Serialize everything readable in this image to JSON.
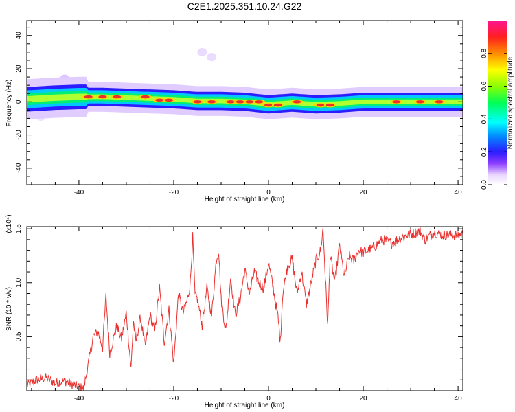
{
  "chart_data": [
    {
      "type": "heatmap",
      "title": "C2E1.2025.351.10.24.G22",
      "xlabel": "Height of straight line (km)",
      "ylabel": "Frequency (Hz)",
      "xlim": [
        -51,
        41
      ],
      "ylim": [
        -50,
        49
      ],
      "xticks": [
        "-40",
        "-20",
        "0",
        "20",
        "40"
      ],
      "yticks": [
        "-40",
        "-20",
        "0",
        "20",
        "40"
      ],
      "colorbar": {
        "label": "Normalized spectral amplitude",
        "range": [
          0,
          1
        ],
        "ticks": [
          "0.0",
          "0.2",
          "0.4",
          "0.6",
          "0.8"
        ]
      },
      "ridge": {
        "x": [
          -51,
          -45,
          -40,
          -35,
          -30,
          -25,
          -20,
          -15,
          -10,
          -5,
          0,
          5,
          10,
          15,
          20,
          25,
          30,
          35,
          40
        ],
        "frequency": [
          1.5,
          2.5,
          3,
          3,
          2.5,
          2,
          1.5,
          0.5,
          0.5,
          0,
          -1.5,
          -0.5,
          -1.5,
          -1,
          0,
          0,
          0,
          0,
          0
        ]
      },
      "peaks": [
        {
          "x": -38,
          "y": 3
        },
        {
          "x": -35,
          "y": 3
        },
        {
          "x": -32,
          "y": 3
        },
        {
          "x": -26,
          "y": 3
        },
        {
          "x": -23,
          "y": 1
        },
        {
          "x": -21,
          "y": 1
        },
        {
          "x": -15,
          "y": 0
        },
        {
          "x": -12,
          "y": 0
        },
        {
          "x": -8,
          "y": 0
        },
        {
          "x": -6,
          "y": 0
        },
        {
          "x": -4,
          "y": 0
        },
        {
          "x": -2,
          "y": 0
        },
        {
          "x": 0,
          "y": -2
        },
        {
          "x": 2,
          "y": -2
        },
        {
          "x": 6,
          "y": 0
        },
        {
          "x": 11,
          "y": -2
        },
        {
          "x": 13,
          "y": -2
        },
        {
          "x": 27,
          "y": 0
        },
        {
          "x": 32,
          "y": 0
        },
        {
          "x": 36,
          "y": 0
        }
      ]
    },
    {
      "type": "line",
      "xlabel": "Height of straight line (km)",
      "ylabel": "SNR (10 * v/v)",
      "multiplier": "(x10⁴)",
      "xlim": [
        -51,
        41
      ],
      "ylim": [
        0,
        1.52
      ],
      "xticks": [
        "-40",
        "-20",
        "0",
        "20",
        "40"
      ],
      "yticks": [
        "0.5",
        "1.0",
        "1.5"
      ],
      "series": [
        {
          "name": "SNR",
          "color": "#e8312e",
          "x": [
            -51,
            -49,
            -47,
            -45,
            -43,
            -41,
            -39,
            -38,
            -37,
            -36,
            -35,
            -34.3,
            -33.5,
            -32,
            -31,
            -30,
            -29,
            -28.5,
            -28,
            -27,
            -26,
            -25,
            -24,
            -23,
            -22,
            -21,
            -20,
            -19,
            -18,
            -17,
            -16.5,
            -16,
            -15.5,
            -15,
            -14,
            -13,
            -12,
            -11,
            -10.5,
            -10,
            -9,
            -8,
            -7,
            -6,
            -5,
            -4,
            -3,
            -2,
            -1,
            0,
            1,
            2,
            2.5,
            3,
            4,
            5,
            6,
            7,
            8,
            9,
            10,
            11,
            11.5,
            12,
            12.5,
            13,
            14,
            15,
            16,
            17,
            18,
            19,
            20,
            22,
            24,
            26,
            28,
            30,
            32,
            33,
            35,
            37,
            39,
            41
          ],
          "y": [
            0.05,
            0.1,
            0.12,
            0.07,
            0.09,
            0.05,
            0.02,
            0.25,
            0.5,
            0.55,
            0.4,
            0.88,
            0.35,
            0.6,
            0.48,
            0.72,
            0.2,
            0.65,
            0.45,
            0.68,
            0.4,
            0.7,
            0.55,
            0.95,
            0.45,
            0.75,
            0.25,
            0.9,
            0.72,
            0.86,
            1.0,
            1.42,
            0.88,
            0.85,
            0.6,
            0.95,
            0.7,
            1.22,
            1.3,
            0.85,
            0.55,
            1.05,
            0.7,
            0.85,
            1.12,
            0.9,
            1.1,
            1.0,
            0.95,
            1.18,
            0.95,
            0.68,
            0.45,
            0.9,
            1.15,
            1.22,
            0.9,
            1.1,
            0.8,
            1.0,
            1.2,
            1.3,
            1.5,
            1.05,
            0.6,
            1.25,
            1.0,
            1.35,
            1.05,
            1.25,
            1.2,
            1.3,
            1.28,
            1.32,
            1.4,
            1.37,
            1.42,
            1.45,
            1.48,
            1.4,
            1.47,
            1.44,
            1.44,
            1.45
          ]
        }
      ]
    }
  ]
}
